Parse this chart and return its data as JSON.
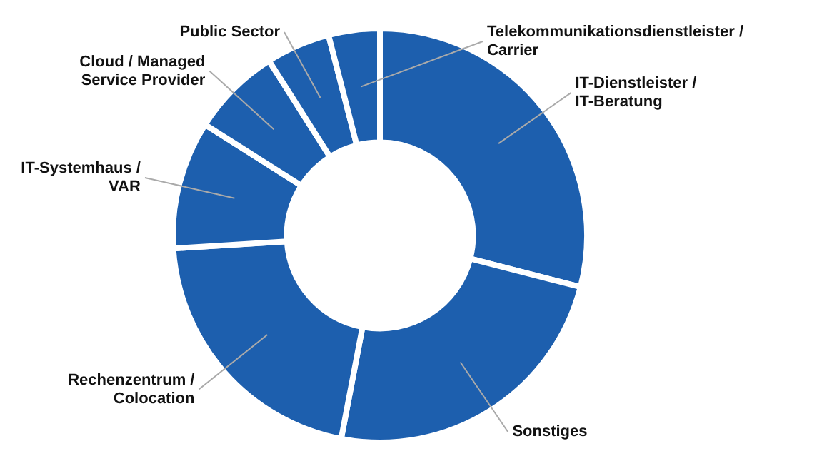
{
  "chart_data": {
    "type": "donut",
    "categories": [
      "IT-Dienstleister / IT-Beratung",
      "Sonstiges",
      "Rechenzentrum / Colocation",
      "IT-Systemhaus / VAR",
      "Cloud / Managed Service Provider",
      "Public Sector",
      "Telekommunikationsdienstleister / Carrier"
    ],
    "values": [
      29,
      24,
      21,
      10,
      7,
      5,
      4
    ],
    "colors": [
      "#1d5fae",
      "#1d5fae",
      "#1d5fae",
      "#1d5fae",
      "#1d5fae",
      "#1d5fae",
      "#1d5fae"
    ],
    "legend": false
  }
}
